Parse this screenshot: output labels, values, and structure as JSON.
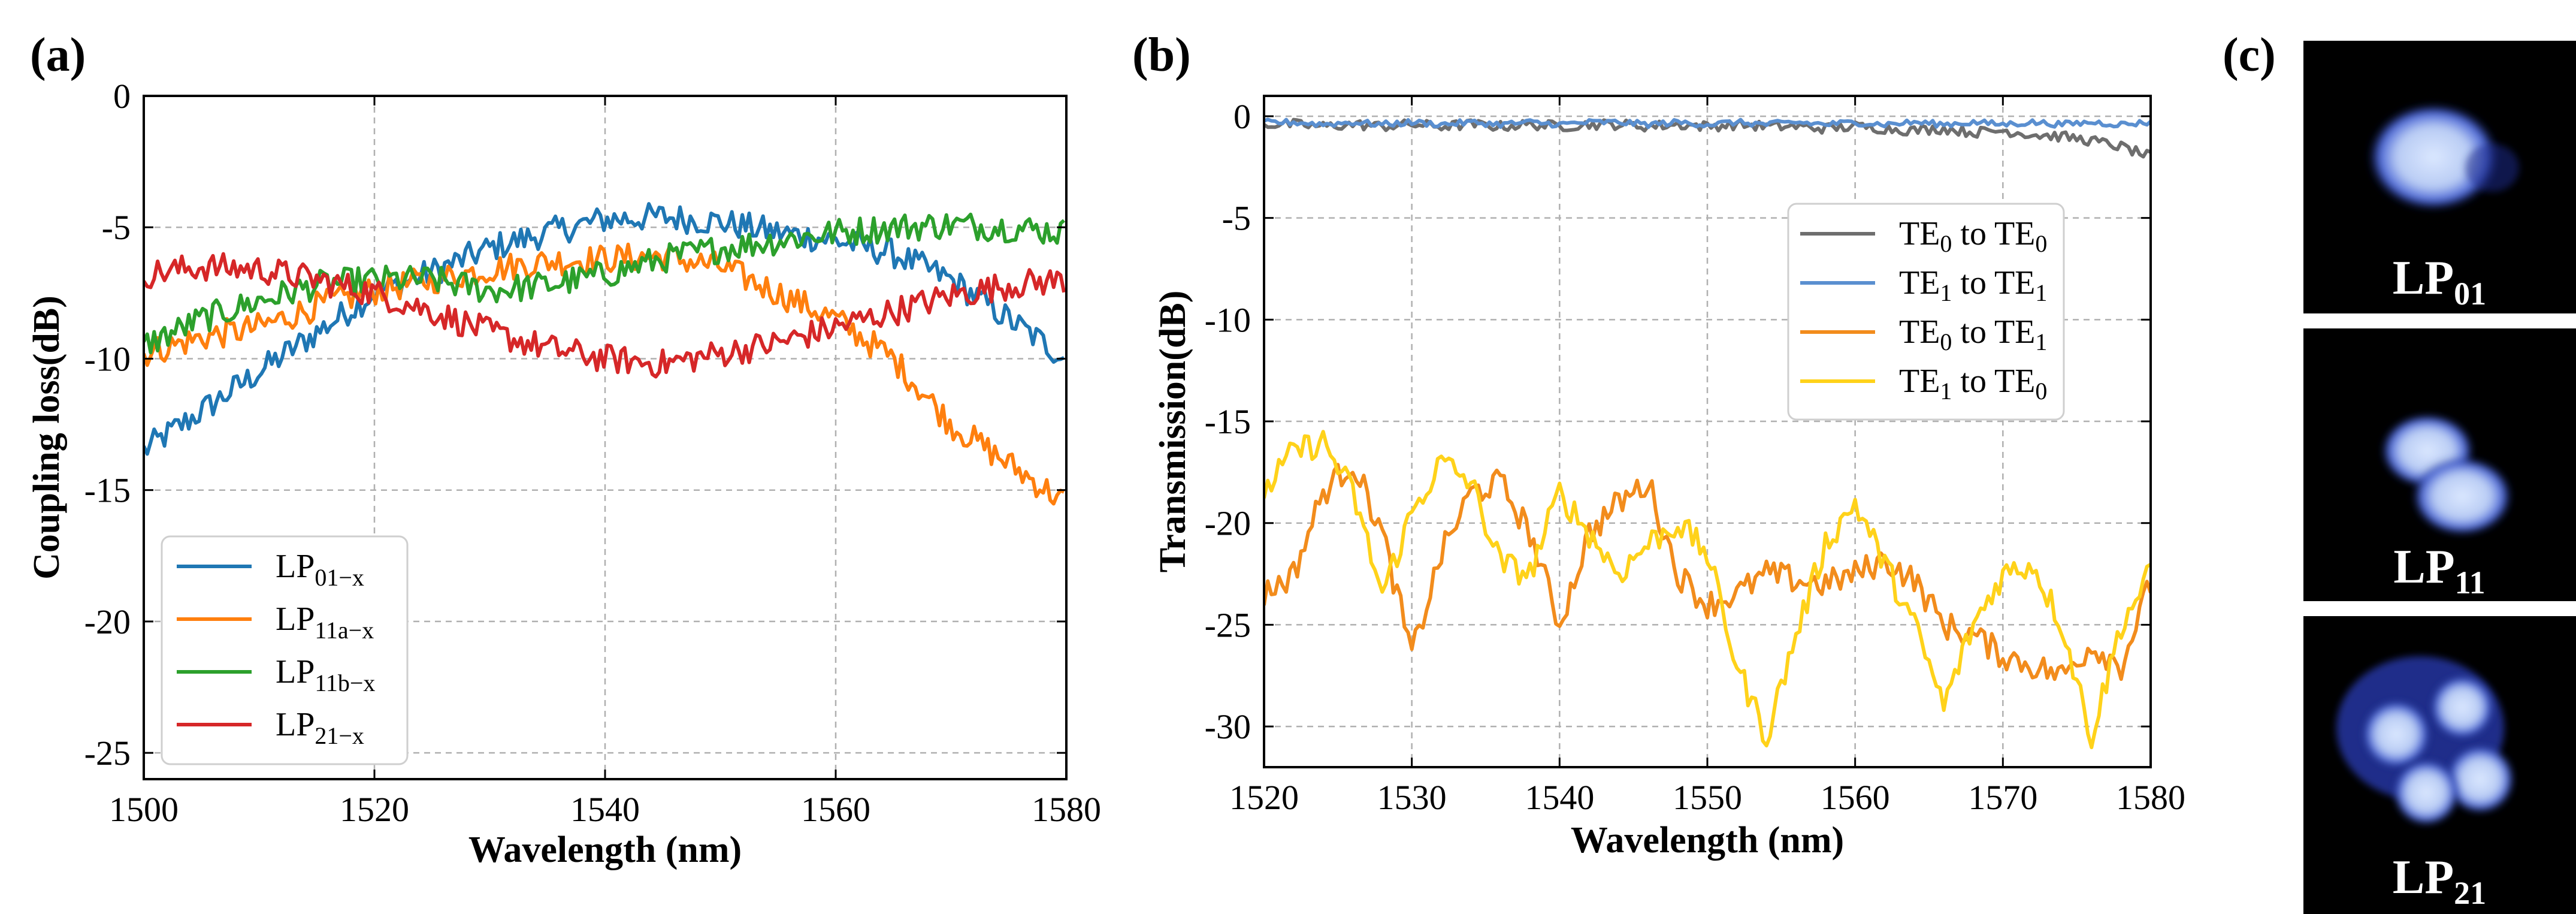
{
  "figure_labels": {
    "a": "(a)",
    "b": "(b)",
    "c": "(c)"
  },
  "colors": {
    "blue": "#1f77b4",
    "orange": "#ff7f0e",
    "green": "#2ca02c",
    "red": "#d62728",
    "gray": "#6e6e6e",
    "lightblue": "#5a8fd0",
    "dorange": "#f28c1c",
    "yellow": "#ffd21a"
  },
  "chart_data": [
    {
      "id": "a",
      "type": "line",
      "xlabel": "Wavelength (nm)",
      "ylabel": "Coupling loss(dB)",
      "xlim": [
        1500,
        1580
      ],
      "ylim": [
        -26,
        0
      ],
      "xticks": [
        1500,
        1520,
        1540,
        1560,
        1580
      ],
      "yticks": [
        0,
        -5,
        -10,
        -15,
        -20,
        -25
      ],
      "xtick_labels": [
        "1500",
        "1520",
        "1540",
        "1560",
        "1580"
      ],
      "ytick_labels": [
        "0",
        "-5",
        "-10",
        "-15",
        "-20",
        "-25"
      ],
      "grid": true,
      "legend_position": "lower-left",
      "x": [
        1500,
        1505,
        1510,
        1515,
        1520,
        1525,
        1530,
        1535,
        1540,
        1545,
        1550,
        1555,
        1560,
        1565,
        1570,
        1575,
        1580
      ],
      "series": [
        {
          "name": "LP01-x",
          "base": "LP",
          "sub": "01−x",
          "color_key": "blue",
          "values": [
            -13.5,
            -12.0,
            -10.5,
            -9.0,
            -7.5,
            -6.7,
            -5.8,
            -5.2,
            -4.7,
            -4.6,
            -4.8,
            -5.2,
            -5.5,
            -6.0,
            -7.0,
            -8.5,
            -10.0
          ]
        },
        {
          "name": "LP11a-x",
          "base": "LP",
          "sub": "11a−x",
          "color_key": "orange",
          "values": [
            -9.8,
            -9.2,
            -8.8,
            -8.0,
            -7.4,
            -7.0,
            -6.6,
            -6.3,
            -6.2,
            -6.1,
            -6.5,
            -7.5,
            -8.5,
            -10.0,
            -12.5,
            -14.0,
            -15.5
          ]
        },
        {
          "name": "LP11b-x",
          "base": "LP",
          "sub": "11b−x",
          "color_key": "green",
          "values": [
            -9.5,
            -8.5,
            -7.8,
            -7.2,
            -7.0,
            -7.0,
            -7.4,
            -7.2,
            -6.8,
            -6.2,
            -5.8,
            -5.5,
            -5.2,
            -5.0,
            -4.9,
            -5.0,
            -5.2
          ]
        },
        {
          "name": "LP21-x",
          "base": "LP",
          "sub": "21−x",
          "color_key": "red",
          "values": [
            -6.8,
            -6.5,
            -6.6,
            -7.0,
            -7.5,
            -8.2,
            -9.0,
            -9.6,
            -10.0,
            -10.2,
            -9.8,
            -9.4,
            -8.8,
            -8.2,
            -7.6,
            -7.2,
            -7.0
          ]
        }
      ]
    },
    {
      "id": "b",
      "type": "line",
      "xlabel": "Wavelength (nm)",
      "ylabel": "Transmission(dB)",
      "xlim": [
        1520,
        1580
      ],
      "ylim": [
        -32,
        1
      ],
      "xticks": [
        1520,
        1530,
        1540,
        1550,
        1560,
        1570,
        1580
      ],
      "yticks": [
        0,
        -5,
        -10,
        -15,
        -20,
        -25,
        -30
      ],
      "xtick_labels": [
        "1520",
        "1530",
        "1540",
        "1550",
        "1560",
        "1570",
        "1580"
      ],
      "ytick_labels": [
        "0",
        "-5",
        "-10",
        "-15",
        "-20",
        "-25",
        "-30"
      ],
      "grid": true,
      "legend_position": "upper-right",
      "x": [
        1520,
        1522,
        1524,
        1526,
        1528,
        1530,
        1532,
        1534,
        1536,
        1538,
        1540,
        1542,
        1544,
        1546,
        1548,
        1550,
        1552,
        1554,
        1556,
        1558,
        1560,
        1562,
        1564,
        1566,
        1568,
        1570,
        1572,
        1574,
        1576,
        1578,
        1580
      ],
      "series": [
        {
          "name": "TE0 to TE0",
          "parts": [
            "TE",
            "0",
            " to TE",
            "0"
          ],
          "color_key": "gray",
          "values": [
            -0.4,
            -0.4,
            -0.5,
            -0.4,
            -0.5,
            -0.4,
            -0.5,
            -0.4,
            -0.5,
            -0.4,
            -0.5,
            -0.4,
            -0.4,
            -0.5,
            -0.4,
            -0.5,
            -0.4,
            -0.5,
            -0.5,
            -0.6,
            -0.5,
            -0.6,
            -0.7,
            -0.6,
            -0.8,
            -0.7,
            -0.9,
            -1.0,
            -1.2,
            -1.5,
            -2.0
          ]
        },
        {
          "name": "TE1 to TE1",
          "parts": [
            "TE",
            "1",
            " to TE",
            "1"
          ],
          "color_key": "lightblue",
          "values": [
            -0.3,
            -0.3,
            -0.4,
            -0.3,
            -0.4,
            -0.3,
            -0.4,
            -0.3,
            -0.4,
            -0.3,
            -0.4,
            -0.3,
            -0.3,
            -0.4,
            -0.3,
            -0.4,
            -0.3,
            -0.4,
            -0.3,
            -0.4,
            -0.3,
            -0.4,
            -0.3,
            -0.4,
            -0.3,
            -0.4,
            -0.3,
            -0.4,
            -0.3,
            -0.4,
            -0.3
          ]
        },
        {
          "name": "TE0 to TE1",
          "parts": [
            "TE",
            "0",
            " to TE",
            "1"
          ],
          "color_key": "dorange",
          "values": [
            -23.5,
            -22.5,
            -18.5,
            -17.0,
            -20.5,
            -26.5,
            -21.5,
            -18.5,
            -18.0,
            -20.5,
            -25.0,
            -20.5,
            -19.0,
            -18.0,
            -22.5,
            -24.0,
            -23.5,
            -22.5,
            -22.8,
            -23.0,
            -22.5,
            -21.8,
            -22.8,
            -25.0,
            -25.5,
            -26.5,
            -27.0,
            -27.5,
            -26.0,
            -27.0,
            -23.0
          ]
        },
        {
          "name": "TE1 to TE0",
          "parts": [
            "TE",
            "1",
            " to TE",
            "0"
          ],
          "color_key": "yellow",
          "values": [
            -18.5,
            -16.5,
            -16.0,
            -18.5,
            -23.5,
            -19.5,
            -17.0,
            -18.0,
            -22.0,
            -22.5,
            -18.5,
            -20.5,
            -22.5,
            -21.0,
            -20.0,
            -21.5,
            -27.0,
            -30.5,
            -25.5,
            -21.0,
            -19.0,
            -22.0,
            -25.0,
            -29.0,
            -25.0,
            -22.5,
            -22.0,
            -25.0,
            -30.5,
            -25.0,
            -22.5
          ]
        }
      ]
    }
  ],
  "mode_images": [
    {
      "base": "LP",
      "sub": "01"
    },
    {
      "base": "LP",
      "sub": "11"
    },
    {
      "base": "LP",
      "sub": "21"
    }
  ]
}
